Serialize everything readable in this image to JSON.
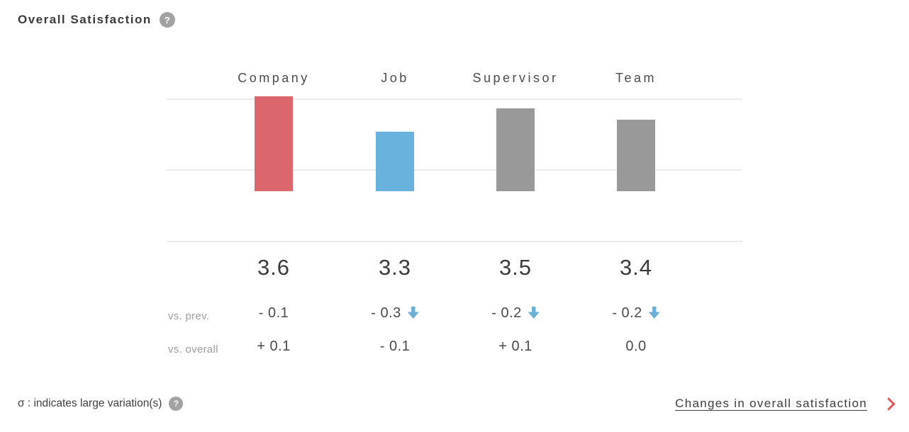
{
  "header": {
    "title": "Overall Satisfaction"
  },
  "chart_data": {
    "type": "bar",
    "title": "Overall Satisfaction",
    "categories": [
      "Company",
      "Job",
      "Supervisor",
      "Team"
    ],
    "values": [
      3.6,
      3.3,
      3.5,
      3.4
    ],
    "bar_colors": [
      "#db666b",
      "#69b2de",
      "#999999",
      "#999999"
    ],
    "ylim": [
      2.8,
      4.0
    ],
    "gridline_values": [
      4.0,
      3.4,
      2.8
    ],
    "grid": true,
    "legend": false,
    "xlabel": "",
    "ylabel": "",
    "rows": [
      {
        "label": "vs. prev.",
        "values": [
          "- 0.1",
          "- 0.3",
          "- 0.2",
          "- 0.2"
        ],
        "down_arrow": [
          false,
          true,
          true,
          true
        ]
      },
      {
        "label": "vs. overall",
        "values": [
          "+ 0.1",
          "- 0.1",
          "+ 0.1",
          "0.0"
        ],
        "down_arrow": [
          false,
          false,
          false,
          false
        ]
      }
    ]
  },
  "footer": {
    "note": "σ : indicates large variation(s)",
    "link_label": "Changes in overall satisfaction"
  },
  "colors": {
    "accent_red": "#db666b",
    "accent_blue": "#69b2de",
    "bar_gray": "#999999",
    "arrow_blue": "#6cb0d8",
    "chevron_red": "#df585b",
    "gridline": "#ececec",
    "muted_text": "#9e9e9e",
    "text": "#3f3f3f"
  }
}
